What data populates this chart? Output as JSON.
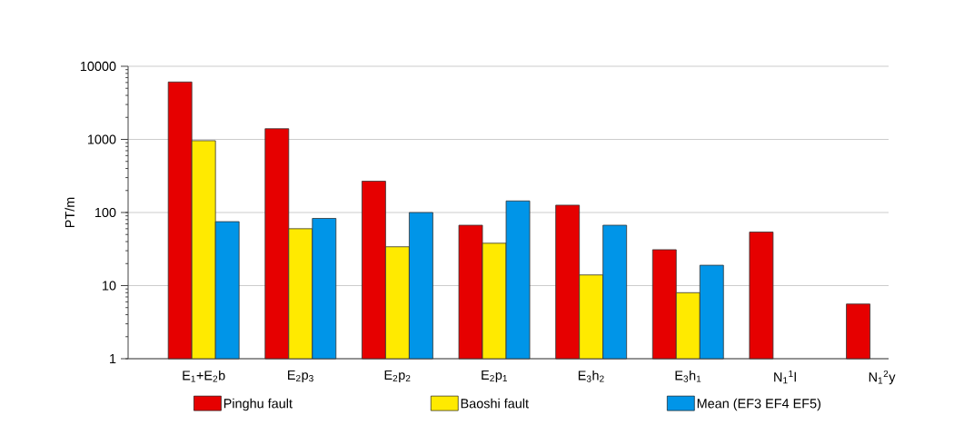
{
  "chart_data": {
    "type": "bar",
    "ylabel": "PT/m",
    "categories": [
      "E$_{1}$+E$_{2}$b",
      "E$_{2}$p$_{3}$",
      "E$_{2}$p$_{2}$",
      "E$_{2}$p$_{1}$",
      "E$_{3}$h$_{2}$",
      "E$_{3}$h$_{1}$",
      "N$_{1}$$^{1}$l",
      "N$_{1}$$^{2}$y"
    ],
    "series": [
      {
        "name": "Pinghu fault",
        "color": "#e60000",
        "values": [
          6100,
          1400,
          268,
          67,
          126,
          31,
          54,
          5.6
        ]
      },
      {
        "name": "Baoshi fault",
        "color": "#ffea00",
        "values": [
          960,
          60,
          34,
          38,
          14,
          8,
          null,
          null
        ]
      },
      {
        "name": "Mean (EF3 EF4 EF5)",
        "color": "#0095e8",
        "values": [
          75,
          83,
          100,
          144,
          67,
          19,
          null,
          null
        ]
      }
    ],
    "log": "y",
    "ylim": [
      1,
      10000
    ],
    "yticks": [
      1,
      10,
      100,
      1000,
      10000
    ],
    "grid": "y",
    "legend": "bottom"
  }
}
